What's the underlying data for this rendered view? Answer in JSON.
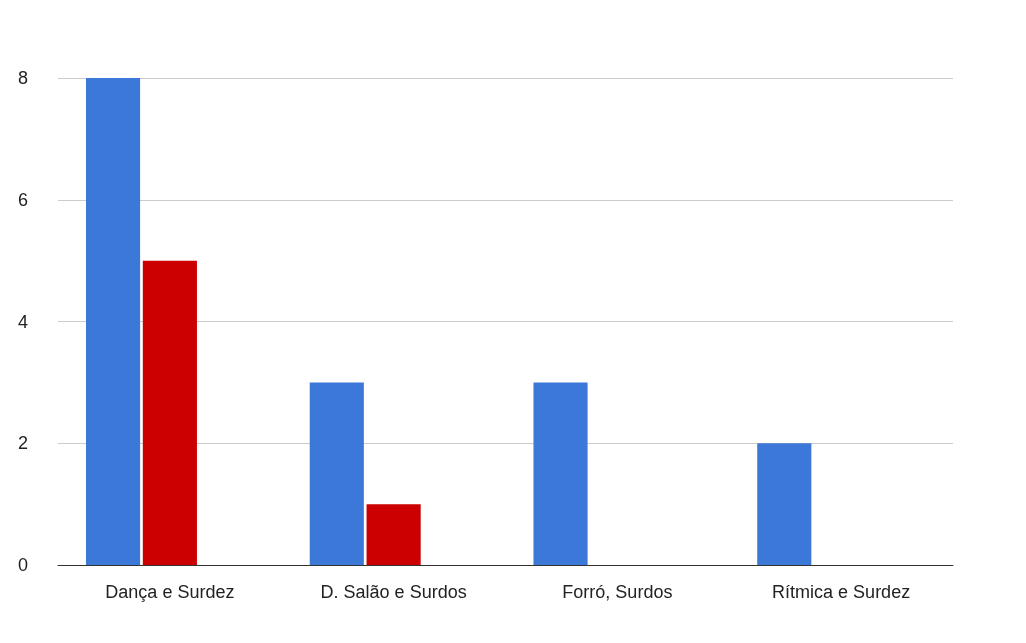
{
  "chart_data": {
    "type": "bar",
    "categories": [
      "Dança e Surdez",
      "D. Salão e Surdos",
      "Forró, Surdos",
      "Rítmica e Surdez"
    ],
    "series": [
      {
        "color": "#3c78d8",
        "values": [
          8,
          3,
          3,
          2
        ]
      },
      {
        "color": "#cc0000",
        "values": [
          5,
          1,
          0,
          0
        ]
      },
      {
        "color": "#38761d",
        "values": [
          0,
          0,
          0,
          0
        ]
      }
    ],
    "ylim": [
      0,
      8
    ],
    "yticks": [
      0,
      2,
      4,
      6,
      8
    ],
    "grid": "y"
  }
}
